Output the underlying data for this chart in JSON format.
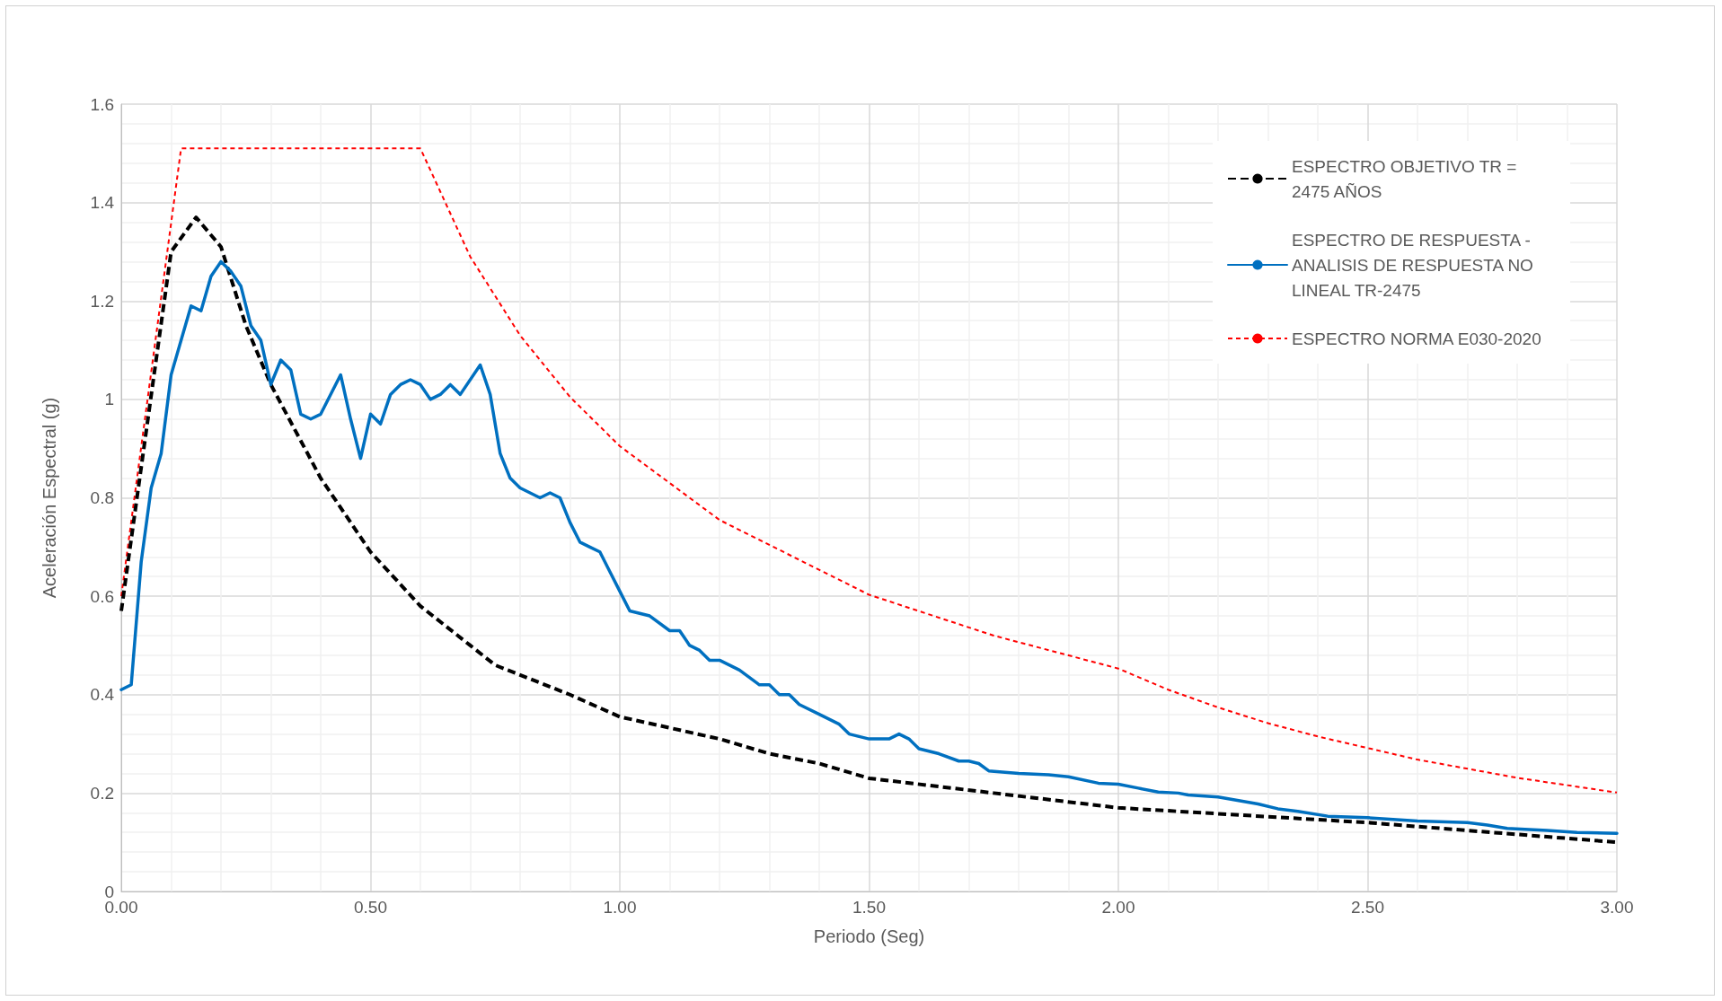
{
  "chart_data": {
    "type": "line",
    "xlabel": "Periodo (Seg)",
    "ylabel": "Aceleración Espectral (g)",
    "xlim": [
      0,
      3
    ],
    "xticks": [
      {
        "value": 0,
        "label": "0.00"
      },
      {
        "value": 0.5,
        "label": "0.50"
      },
      {
        "value": 1,
        "label": "1.00"
      },
      {
        "value": 1.5,
        "label": "1.50"
      },
      {
        "value": 2,
        "label": "2.00"
      },
      {
        "value": 2.5,
        "label": "2.50"
      },
      {
        "value": 3,
        "label": "3.00"
      }
    ],
    "ylim": [
      0,
      1.6
    ],
    "yticks": [
      0,
      0.2,
      0.4,
      0.6,
      0.8,
      1,
      1.2,
      1.4,
      1.6
    ],
    "grid": true,
    "legend": "top right",
    "marker": "none",
    "series": [
      {
        "name": "ESPECTRO OBJETIVO TR = 2475 AÑOS",
        "color": "#000000",
        "line_style": "dashed",
        "x": [
          0,
          0.1,
          0.15,
          0.2,
          0.25,
          0.3,
          0.4,
          0.5,
          0.6,
          0.7,
          0.75,
          0.8,
          0.9,
          1.0,
          1.2,
          1.3,
          1.4,
          1.5,
          1.75,
          2.0,
          2.5,
          3.0
        ],
        "values": [
          0.57,
          1.3,
          1.37,
          1.31,
          1.15,
          1.03,
          0.84,
          0.69,
          0.58,
          0.5,
          0.46,
          0.44,
          0.4,
          0.355,
          0.31,
          0.28,
          0.26,
          0.23,
          0.2,
          0.17,
          0.14,
          0.1
        ]
      },
      {
        "name": "ESPECTRO DE RESPUESTA - ANALISIS DE RESPUESTA NO LINEAL TR-2475",
        "color": "#0070c0",
        "line_style": "solid",
        "x": [
          0,
          0.02,
          0.04,
          0.06,
          0.08,
          0.1,
          0.12,
          0.14,
          0.16,
          0.18,
          0.2,
          0.22,
          0.24,
          0.26,
          0.28,
          0.3,
          0.32,
          0.34,
          0.36,
          0.38,
          0.4,
          0.44,
          0.46,
          0.48,
          0.5,
          0.52,
          0.54,
          0.56,
          0.58,
          0.6,
          0.62,
          0.64,
          0.66,
          0.68,
          0.72,
          0.74,
          0.76,
          0.78,
          0.8,
          0.82,
          0.84,
          0.86,
          0.88,
          0.9,
          0.92,
          0.94,
          0.96,
          0.98,
          1.0,
          1.02,
          1.06,
          1.1,
          1.12,
          1.14,
          1.16,
          1.18,
          1.2,
          1.24,
          1.28,
          1.3,
          1.32,
          1.34,
          1.36,
          1.4,
          1.44,
          1.46,
          1.5,
          1.54,
          1.56,
          1.58,
          1.6,
          1.64,
          1.68,
          1.7,
          1.72,
          1.74,
          1.8,
          1.86,
          1.9,
          1.96,
          2.0,
          2.04,
          2.08,
          2.12,
          2.14,
          2.2,
          2.28,
          2.32,
          2.36,
          2.42,
          2.5,
          2.6,
          2.7,
          2.74,
          2.78,
          2.86,
          2.92,
          3.0
        ],
        "values": [
          0.41,
          0.42,
          0.67,
          0.82,
          0.89,
          1.05,
          1.12,
          1.19,
          1.18,
          1.25,
          1.28,
          1.26,
          1.23,
          1.15,
          1.12,
          1.03,
          1.08,
          1.06,
          0.97,
          0.96,
          0.97,
          1.05,
          0.96,
          0.88,
          0.97,
          0.95,
          1.01,
          1.03,
          1.04,
          1.03,
          1.0,
          1.01,
          1.03,
          1.01,
          1.07,
          1.01,
          0.89,
          0.84,
          0.82,
          0.81,
          0.8,
          0.81,
          0.8,
          0.75,
          0.71,
          0.7,
          0.69,
          0.65,
          0.61,
          0.57,
          0.56,
          0.53,
          0.53,
          0.5,
          0.49,
          0.47,
          0.47,
          0.45,
          0.42,
          0.42,
          0.4,
          0.4,
          0.38,
          0.36,
          0.34,
          0.32,
          0.31,
          0.31,
          0.32,
          0.31,
          0.29,
          0.28,
          0.265,
          0.265,
          0.26,
          0.245,
          0.24,
          0.237,
          0.233,
          0.22,
          0.218,
          0.21,
          0.202,
          0.2,
          0.196,
          0.192,
          0.178,
          0.168,
          0.163,
          0.153,
          0.15,
          0.143,
          0.14,
          0.135,
          0.128,
          0.124,
          0.12,
          0.118
        ]
      },
      {
        "name": "ESPECTRO NORMA E030-2020",
        "color": "#ff0000",
        "line_style": "dotted",
        "x": [
          0,
          0.12,
          0.6,
          0.7,
          0.8,
          0.9,
          1.0,
          1.2,
          1.5,
          1.75,
          2.0,
          2.1,
          2.2,
          2.3,
          2.4,
          2.6,
          2.8,
          3.0
        ],
        "values": [
          0.6,
          1.51,
          1.51,
          1.29,
          1.13,
          1.005,
          0.905,
          0.755,
          0.603,
          0.52,
          0.453,
          0.41,
          0.374,
          0.342,
          0.315,
          0.268,
          0.231,
          0.201
        ]
      }
    ]
  }
}
